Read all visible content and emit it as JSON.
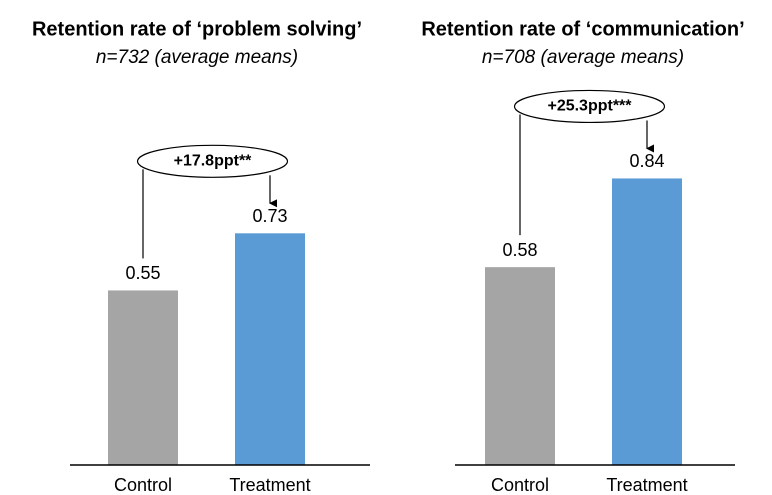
{
  "chart_data": [
    {
      "type": "bar",
      "title": "Retention rate of ‘problem solving’",
      "subtitle": "n=732 (average means)",
      "categories": [
        "Control",
        "Treatment"
      ],
      "values": [
        0.55,
        0.73
      ],
      "colors": [
        "#a5a5a5",
        "#5b9bd5"
      ],
      "ylim": [
        0,
        1.15
      ],
      "annotation": "+17.8ppt**"
    },
    {
      "type": "bar",
      "title": "Retention rate of ‘communication’",
      "subtitle": "n=708 (average means)",
      "categories": [
        "Control",
        "Treatment"
      ],
      "values": [
        0.58,
        0.84
      ],
      "colors": [
        "#a5a5a5",
        "#5b9bd5"
      ],
      "ylim": [
        0,
        1.07
      ],
      "annotation": "+25.3ppt***"
    }
  ]
}
